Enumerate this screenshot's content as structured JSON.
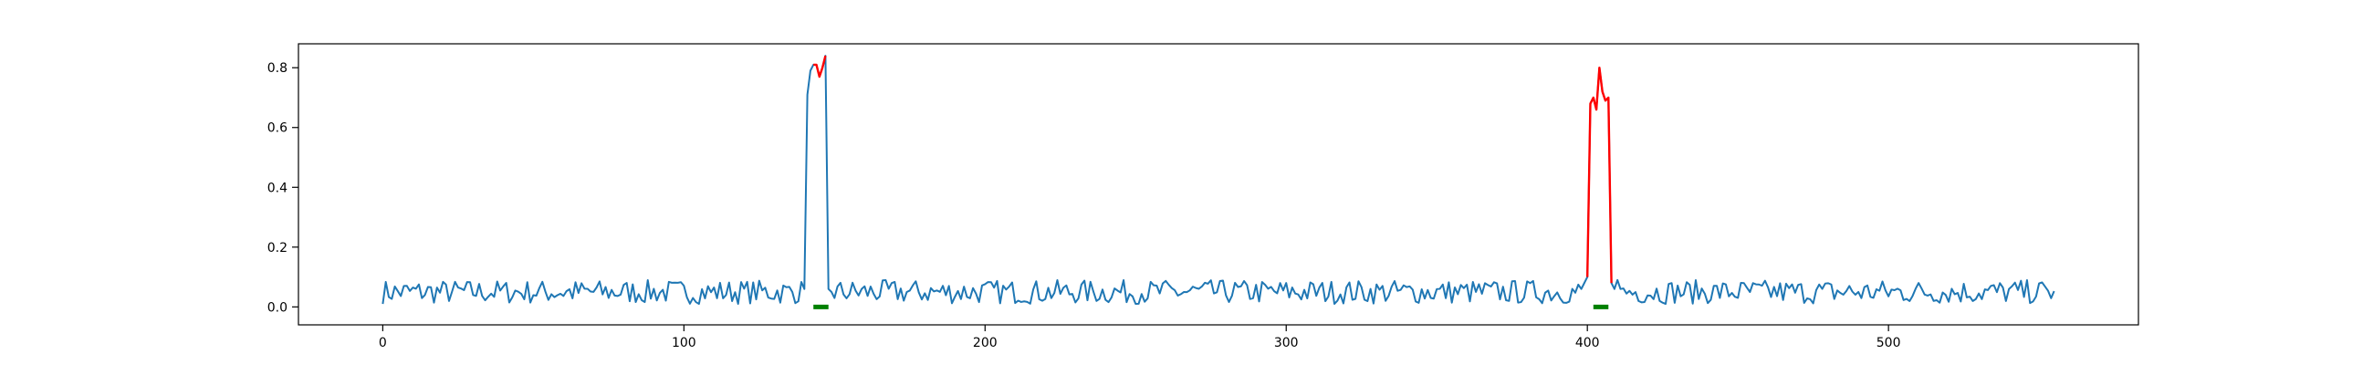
{
  "chart_data": {
    "type": "line",
    "title": "",
    "xlabel": "",
    "ylabel": "",
    "xlim": [
      -28,
      583
    ],
    "ylim": [
      -0.06,
      0.88
    ],
    "x_ticks": [
      0,
      100,
      200,
      300,
      400,
      500
    ],
    "x_tick_labels": [
      "0",
      "100",
      "200",
      "300",
      "400",
      "500"
    ],
    "y_ticks": [
      0.0,
      0.2,
      0.4,
      0.6,
      0.8
    ],
    "y_tick_labels": [
      "0.0",
      "0.2",
      "0.4",
      "0.6",
      "0.8"
    ],
    "grid": false,
    "legend": "none",
    "baseline_seed": 7,
    "n_points": 556,
    "baseline_mean": 0.05,
    "baseline_amplitude": 0.04,
    "series": [
      {
        "color": "#1f77b4",
        "x": [
          0,
          555
        ],
        "note": "noisy baseline around 0.05 with peaks"
      }
    ],
    "peaks": [
      {
        "x": [
          140,
          141,
          142,
          143,
          144,
          145,
          146,
          147,
          148,
          149
        ],
        "y": [
          0.06,
          0.71,
          0.79,
          0.81,
          0.81,
          0.77,
          0.8,
          0.84,
          0.06,
          0.05
        ],
        "highlight_x": [
          143,
          144,
          145,
          146,
          147
        ],
        "highlight_y": [
          0.81,
          0.81,
          0.77,
          0.8,
          0.84
        ]
      },
      {
        "x": [
          398,
          399,
          400,
          401,
          402,
          403,
          404,
          405,
          406,
          407,
          408,
          409,
          410,
          411
        ],
        "y": [
          0.06,
          0.08,
          0.1,
          0.68,
          0.7,
          0.66,
          0.8,
          0.72,
          0.69,
          0.7,
          0.08,
          0.06,
          0.09,
          0.06
        ],
        "highlight_x": [
          400,
          401,
          402,
          403,
          404,
          405,
          406,
          407,
          408
        ],
        "highlight_y": [
          0.1,
          0.68,
          0.7,
          0.66,
          0.8,
          0.72,
          0.69,
          0.7,
          0.08
        ]
      }
    ],
    "highlight_color": "#ff0000",
    "markers": [
      {
        "x": [
          143,
          148
        ],
        "y": 0.0,
        "color": "#008000"
      },
      {
        "x": [
          402,
          407
        ],
        "y": 0.0,
        "color": "#008000"
      }
    ]
  }
}
